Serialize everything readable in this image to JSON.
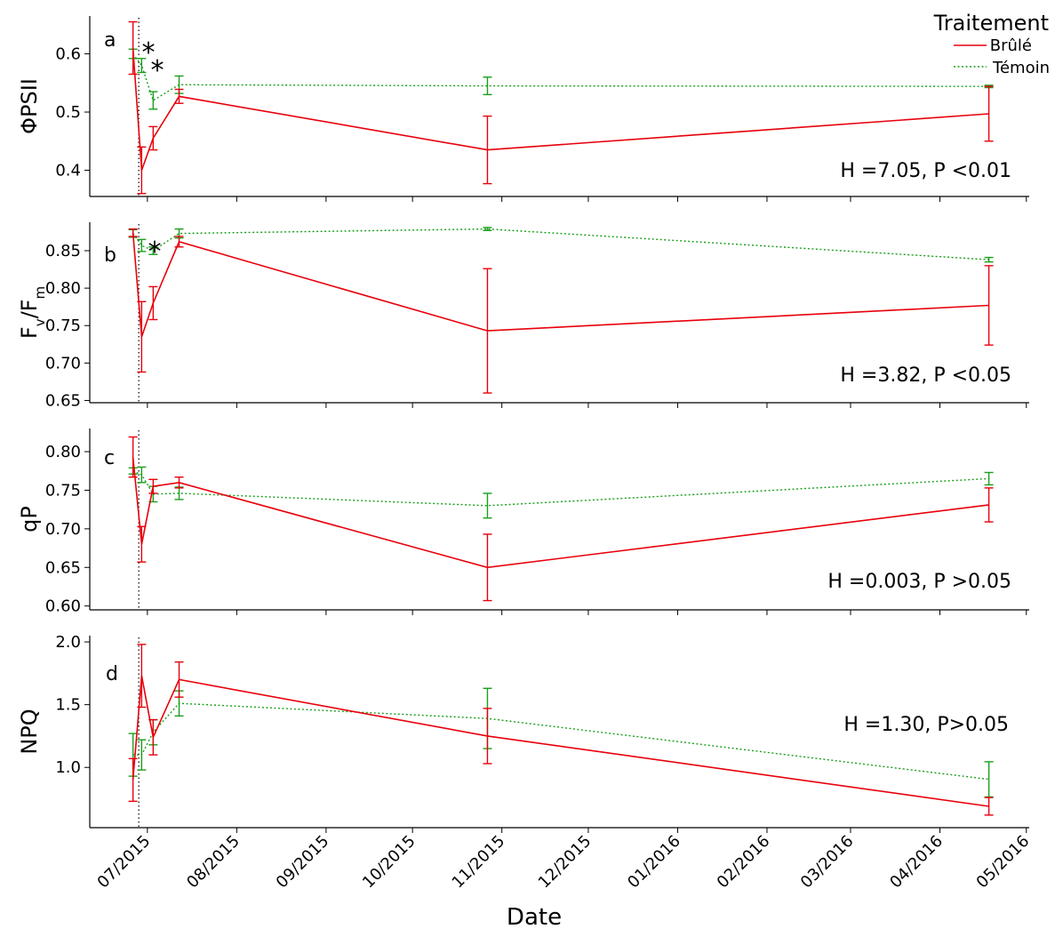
{
  "chart_data": {
    "type": "line",
    "xlabel": "Date",
    "x_ticks": [
      "07/2015",
      "08/2015",
      "09/2015",
      "10/2015",
      "11/2015",
      "12/2015",
      "01/2016",
      "02/2016",
      "03/2016",
      "04/2016",
      "05/2016"
    ],
    "x_range": [
      "2015-06-11",
      "2016-05-02"
    ],
    "fire_date": "2015-06-28",
    "legend": {
      "title": "Traitement",
      "position": "top-right",
      "entries": [
        {
          "name": "Brûlé",
          "color": "#e8000b",
          "style": "solid"
        },
        {
          "name": "Témoin",
          "color": "#1a9e1a",
          "style": "dotted"
        }
      ]
    },
    "panels": [
      {
        "letter": "a",
        "ylabel": "ΦPSII",
        "ylim": [
          0.355,
          0.665
        ],
        "yticks": [
          0.4,
          0.5,
          0.6
        ],
        "ytick_labels": [
          "0.4",
          "0.5",
          "0.6"
        ],
        "stat": "H =7.05, P <0.01",
        "sig_markers": [
          "*",
          "*"
        ],
        "series": [
          {
            "name": "Brûlé",
            "dates": [
              "2015-06-26",
              "2015-06-29",
              "2015-07-03",
              "2015-07-12",
              "2015-10-27",
              "2016-04-18"
            ],
            "y": [
              0.61,
              0.4,
              0.455,
              0.527,
              0.435,
              0.497
            ],
            "err": [
              0.045,
              0.04,
              0.02,
              0.012,
              0.058,
              0.047
            ]
          },
          {
            "name": "Témoin",
            "dates": [
              "2015-06-26",
              "2015-06-29",
              "2015-07-03",
              "2015-07-12",
              "2015-10-27",
              "2016-04-18"
            ],
            "y": [
              0.6,
              0.58,
              0.52,
              0.547,
              0.545,
              0.544
            ],
            "err": [
              0.008,
              0.012,
              0.015,
              0.015,
              0.015,
              0.002
            ]
          }
        ]
      },
      {
        "letter": "b",
        "ylabel": "Fv/Fm",
        "ylim": [
          0.647,
          0.888
        ],
        "yticks": [
          0.65,
          0.7,
          0.75,
          0.8,
          0.85
        ],
        "ytick_labels": [
          "0.65",
          "0.70",
          "0.75",
          "0.80",
          "0.85"
        ],
        "stat": "H =3.82, P <0.05",
        "sig_markers": [
          "*"
        ],
        "series": [
          {
            "name": "Brûlé",
            "dates": [
              "2015-06-26",
              "2015-06-29",
              "2015-07-03",
              "2015-07-12",
              "2015-10-27",
              "2016-04-18"
            ],
            "y": [
              0.874,
              0.735,
              0.78,
              0.862,
              0.743,
              0.777
            ],
            "err": [
              0.005,
              0.047,
              0.022,
              0.007,
              0.083,
              0.053
            ]
          },
          {
            "name": "Témoin",
            "dates": [
              "2015-06-26",
              "2015-06-29",
              "2015-07-03",
              "2015-07-12",
              "2015-10-27",
              "2016-04-18"
            ],
            "y": [
              0.873,
              0.857,
              0.85,
              0.873,
              0.879,
              0.838
            ],
            "err": [
              0.005,
              0.008,
              0.005,
              0.006,
              0.002,
              0.003
            ]
          }
        ]
      },
      {
        "letter": "c",
        "ylabel": "qP",
        "ylim": [
          0.595,
          0.83
        ],
        "yticks": [
          0.6,
          0.65,
          0.7,
          0.75,
          0.8
        ],
        "ytick_labels": [
          "0.60",
          "0.65",
          "0.70",
          "0.75",
          "0.80"
        ],
        "stat": "H =0.003, P >0.05",
        "sig_markers": [],
        "series": [
          {
            "name": "Brûlé",
            "dates": [
              "2015-06-26",
              "2015-06-29",
              "2015-07-03",
              "2015-07-12",
              "2015-10-27",
              "2016-04-18"
            ],
            "y": [
              0.793,
              0.68,
              0.755,
              0.76,
              0.65,
              0.731
            ],
            "err": [
              0.026,
              0.023,
              0.009,
              0.007,
              0.043,
              0.022
            ]
          },
          {
            "name": "Témoin",
            "dates": [
              "2015-06-26",
              "2015-06-29",
              "2015-07-03",
              "2015-07-12",
              "2015-10-27",
              "2016-04-18"
            ],
            "y": [
              0.775,
              0.77,
              0.745,
              0.746,
              0.73,
              0.765
            ],
            "err": [
              0.004,
              0.01,
              0.01,
              0.008,
              0.016,
              0.008
            ]
          }
        ]
      },
      {
        "letter": "d",
        "ylabel": "NPQ",
        "ylim": [
          0.52,
          2.05
        ],
        "yticks": [
          1.0,
          1.5,
          2.0
        ],
        "ytick_labels": [
          "1.0",
          "1.5",
          "2.0"
        ],
        "stat": "H =1.30, P>0.05",
        "sig_markers": [],
        "series": [
          {
            "name": "Brûlé",
            "dates": [
              "2015-06-26",
              "2015-06-29",
              "2015-07-03",
              "2015-07-12",
              "2015-10-27",
              "2016-04-18"
            ],
            "y": [
              0.9,
              1.73,
              1.24,
              1.7,
              1.25,
              0.69
            ],
            "err": [
              0.17,
              0.25,
              0.14,
              0.14,
              0.22,
              0.07
            ]
          },
          {
            "name": "Témoin",
            "dates": [
              "2015-06-26",
              "2015-06-29",
              "2015-07-03",
              "2015-07-12",
              "2015-10-27",
              "2016-04-18"
            ],
            "y": [
              1.1,
              1.1,
              1.28,
              1.51,
              1.39,
              0.905
            ],
            "err": [
              0.17,
              0.12,
              0.1,
              0.1,
              0.24,
              0.14
            ]
          }
        ]
      }
    ]
  }
}
